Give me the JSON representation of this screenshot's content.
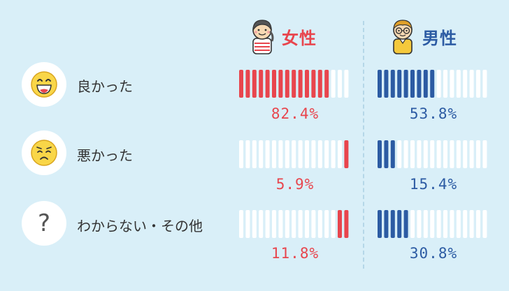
{
  "colors": {
    "female": "#e8454d",
    "male": "#2c5ba3",
    "empty": "#ffffff"
  },
  "headers": {
    "female": "女性",
    "male": "男性"
  },
  "rows": [
    {
      "label": "良かった",
      "icon": "grinning-face-icon"
    },
    {
      "label": "悪かった",
      "icon": "worried-face-icon"
    },
    {
      "label": "わからない・その他",
      "icon": "question-mark-icon"
    }
  ],
  "chart_data": {
    "type": "bar",
    "categories": [
      "良かった",
      "悪かった",
      "わからない・その他"
    ],
    "series": [
      {
        "name": "女性",
        "values": [
          82.4,
          5.9,
          11.8
        ],
        "labels": [
          "82.4%",
          "5.9%",
          "11.8%"
        ]
      },
      {
        "name": "男性",
        "values": [
          53.8,
          15.4,
          30.8
        ],
        "labels": [
          "53.8%",
          "15.4%",
          "30.8%"
        ]
      }
    ],
    "ylim": [
      0,
      100
    ]
  }
}
